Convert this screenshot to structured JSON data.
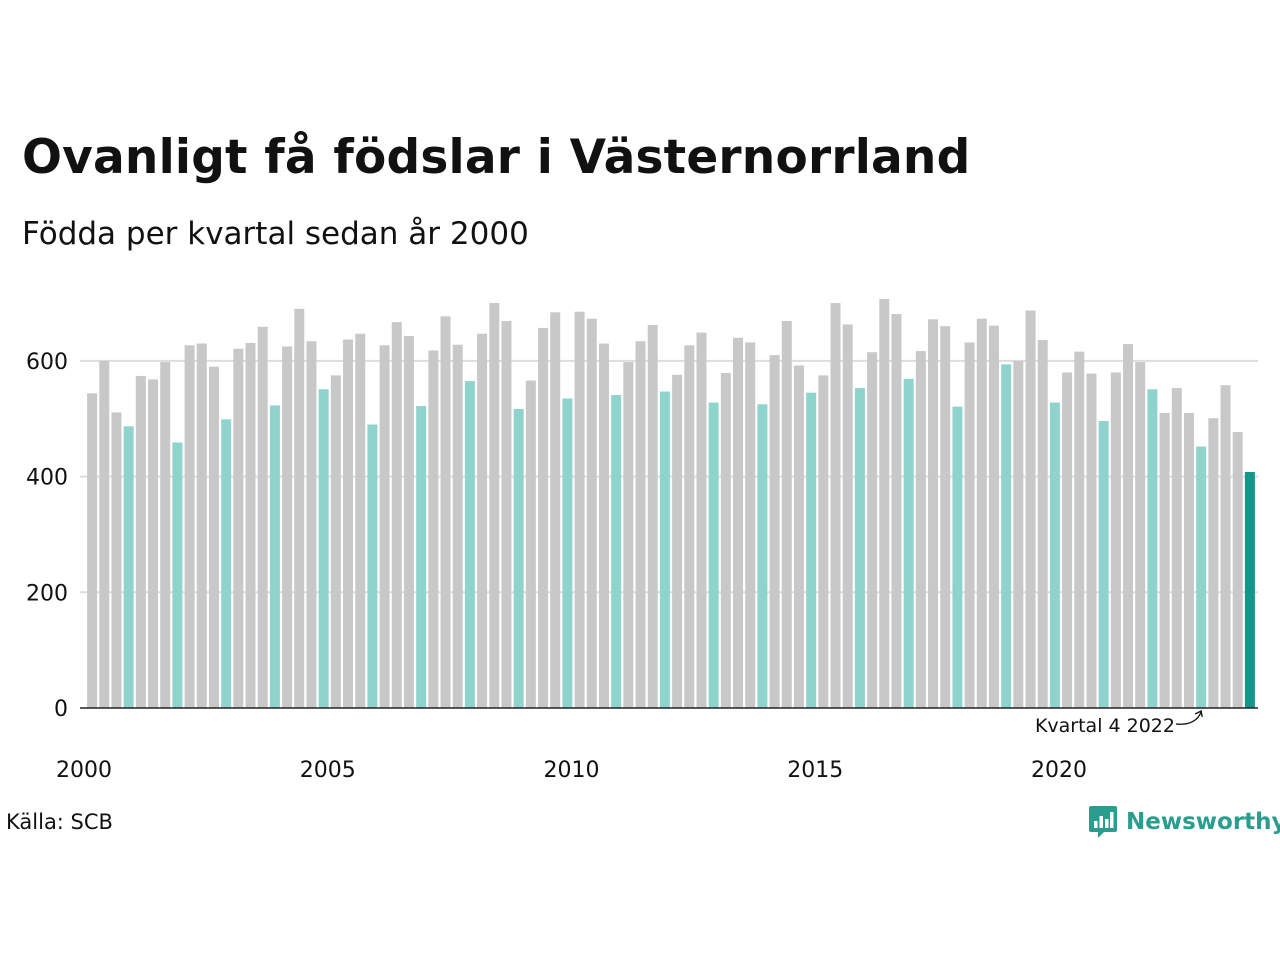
{
  "title": "Ovanligt få födslar i Västernorrland",
  "subtitle": "Födda per kvartal sedan år 2000",
  "source": "Källa: SCB",
  "brand": {
    "name": "Newsworthy",
    "icon": "newsworthy-logo-icon"
  },
  "colors": {
    "other_quarters": "#c8c8c8",
    "q4_quarters": "#8fd4cc",
    "latest": "#16968a",
    "grid": "#dddddd",
    "axis": "#222222",
    "brand": "#2a9d8f"
  },
  "chart_data": {
    "type": "bar",
    "title": "Ovanligt få födslar i Västernorrland",
    "subtitle": "Födda per kvartal sedan år 2000",
    "xlabel": "",
    "ylabel": "",
    "ylim": [
      0,
      700
    ],
    "yticks": [
      0,
      200,
      400,
      600
    ],
    "xtick_labels": [
      "2000",
      "2005",
      "2010",
      "2015",
      "2020"
    ],
    "grid": true,
    "highlight": "q4",
    "annotation": {
      "text": "Kvartal 4 2022",
      "index": 91
    },
    "values": [
      544,
      600,
      511,
      487,
      574,
      568,
      598,
      459,
      627,
      630,
      590,
      499,
      621,
      631,
      659,
      523,
      625,
      690,
      634,
      551,
      575,
      637,
      647,
      490,
      627,
      667,
      643,
      522,
      618,
      677,
      628,
      565,
      647,
      700,
      669,
      517,
      566,
      657,
      684,
      535,
      685,
      673,
      630,
      541,
      598,
      634,
      662,
      547,
      576,
      627,
      649,
      528,
      579,
      640,
      632,
      525,
      610,
      669,
      592,
      545,
      575,
      700,
      663,
      553,
      615,
      707,
      681,
      569,
      617,
      672,
      660,
      521,
      632,
      673,
      661,
      594,
      600,
      687,
      636,
      528,
      580,
      616,
      578,
      496,
      580,
      629,
      598,
      551,
      510,
      553,
      510,
      452,
      501,
      558,
      477,
      408
    ]
  }
}
